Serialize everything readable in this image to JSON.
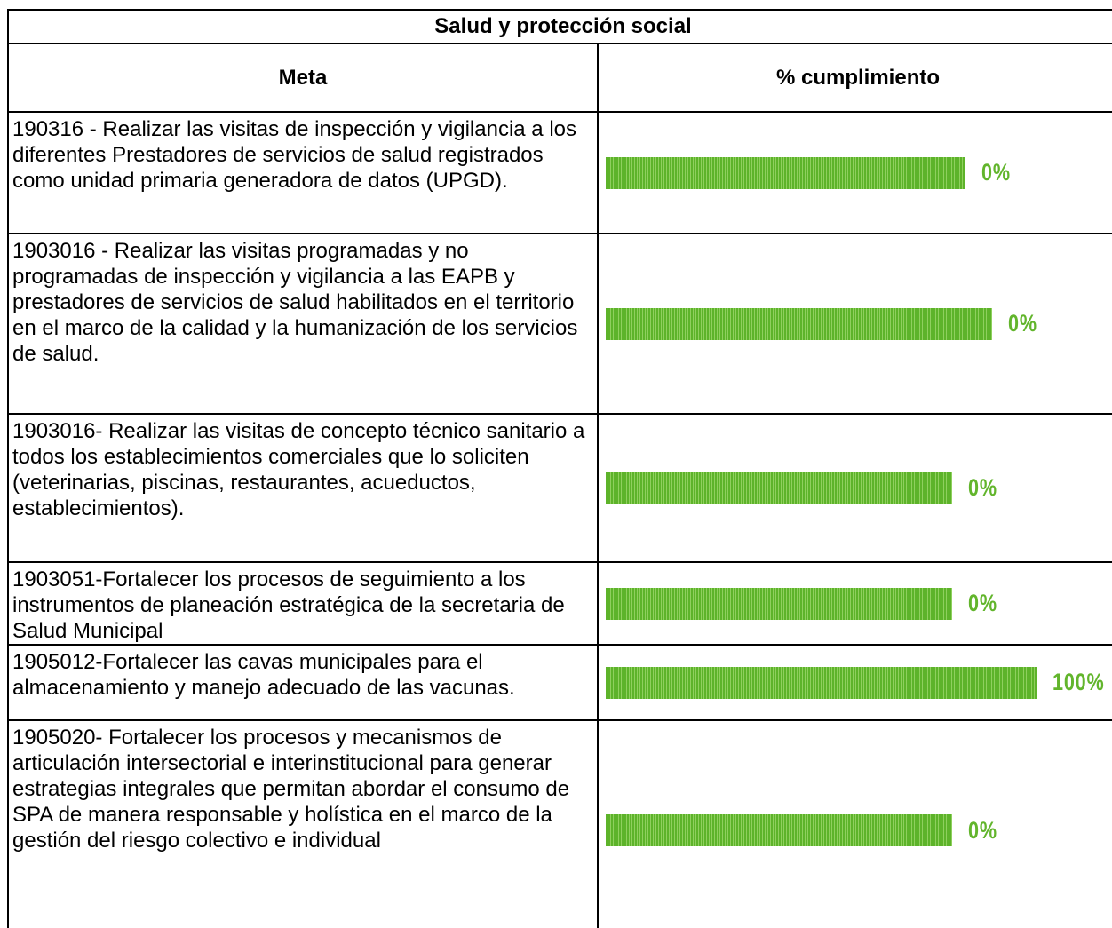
{
  "table": {
    "title": "Salud y protección social",
    "headers": [
      "Meta",
      "% cumplimiento"
    ],
    "rows": [
      [
        "190316 - Realizar las visitas de inspección y vigilancia a los diferentes Prestadores de servicios de salud registrados como unidad primaria generadora de datos (UPGD).",
        "0%"
      ],
      [
        "1903016 - Realizar las visitas programadas y no programadas de inspección y vigilancia a las EAPB y prestadores de servicios de salud habilitados en el territorio en el marco de la calidad y la humanización de los servicios de salud.",
        "0%"
      ],
      [
        "1903016- Realizar las visitas de concepto técnico sanitario a todos los establecimientos comerciales que lo soliciten (veterinarias, piscinas, restaurantes, acueductos, establecimientos).",
        "0%"
      ],
      [
        "1903051-Fortalecer los procesos de seguimiento a los instrumentos de planeación estratégica de la secretaria de Salud Municipal",
        "0%"
      ],
      [
        "1905012-Fortalecer las cavas municipales para el almacenamiento y manejo adecuado de las vacunas.",
        "100%"
      ],
      [
        "1905020- Fortalecer los procesos y mecanismos de articulación intersectorial e interinstitucional para generar estrategias integrales que permitan abordar el consumo de SPA de manera responsable y holística en el marco de la gestión del riesgo colectivo e individual",
        "0%"
      ]
    ]
  }
}
